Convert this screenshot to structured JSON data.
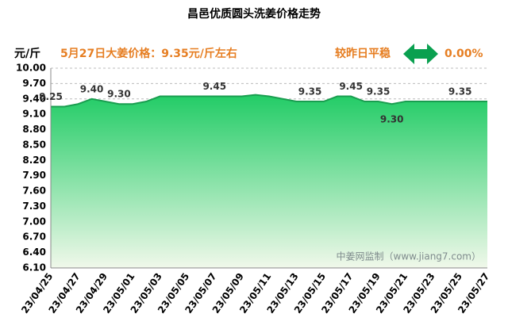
{
  "chart_data": {
    "type": "area",
    "title": "昌邑优质圆头洗姜价格走势",
    "y_unit": "元/斤",
    "headline": "5月27日大姜价格：9.35元/斤左右",
    "change_label": "较昨日平稳",
    "change_value": "0.00%",
    "watermark": "中姜网监制（www.jiang7.com）",
    "categories": [
      "23/04/25",
      null,
      "23/04/27",
      null,
      "23/04/29",
      null,
      "23/05/01",
      null,
      "23/05/03",
      null,
      "23/05/05",
      null,
      "23/05/07",
      null,
      "23/05/09",
      null,
      "23/05/11",
      null,
      "23/05/13",
      null,
      "23/05/15",
      null,
      "23/05/17",
      null,
      "23/05/19",
      null,
      "23/05/21",
      null,
      "23/05/23",
      null,
      "23/05/25",
      null,
      "23/05/27"
    ],
    "values": [
      9.25,
      9.25,
      9.3,
      9.4,
      9.35,
      9.3,
      9.3,
      9.35,
      9.45,
      9.45,
      9.45,
      9.45,
      9.45,
      9.45,
      9.45,
      9.48,
      9.45,
      9.4,
      9.35,
      9.35,
      9.35,
      9.45,
      9.45,
      9.35,
      9.35,
      9.3,
      9.35,
      9.35,
      9.35,
      9.35,
      9.35,
      9.35,
      9.35
    ],
    "value_labels": [
      "9.25",
      null,
      null,
      "9.40",
      null,
      "9.30",
      null,
      null,
      null,
      null,
      null,
      null,
      "9.45",
      null,
      null,
      null,
      null,
      null,
      null,
      "9.35",
      null,
      null,
      "9.45",
      null,
      "9.35",
      "9.30",
      null,
      null,
      null,
      null,
      "9.35",
      null,
      null
    ],
    "color": "#2ecc71",
    "ylim": [
      6.1,
      10.0
    ],
    "yticks": [
      {
        "value": 10.0,
        "label": "10.00"
      },
      {
        "value": 9.7,
        "label": "9.70"
      },
      {
        "value": 9.4,
        "label": "9.40"
      },
      {
        "value": 9.1,
        "label": "9.10"
      },
      {
        "value": 8.8,
        "label": "8.80"
      },
      {
        "value": 8.5,
        "label": "8.50"
      },
      {
        "value": 8.2,
        "label": "8.20"
      },
      {
        "value": 7.9,
        "label": "7.90"
      },
      {
        "value": 7.6,
        "label": "7.60"
      },
      {
        "value": 7.3,
        "label": "7.30"
      },
      {
        "value": 7.0,
        "label": "7.00"
      },
      {
        "value": 6.7,
        "label": "6.70"
      },
      {
        "value": 6.4,
        "label": "6.40"
      },
      {
        "value": 6.1,
        "label": "6.10"
      }
    ],
    "grid": true
  }
}
